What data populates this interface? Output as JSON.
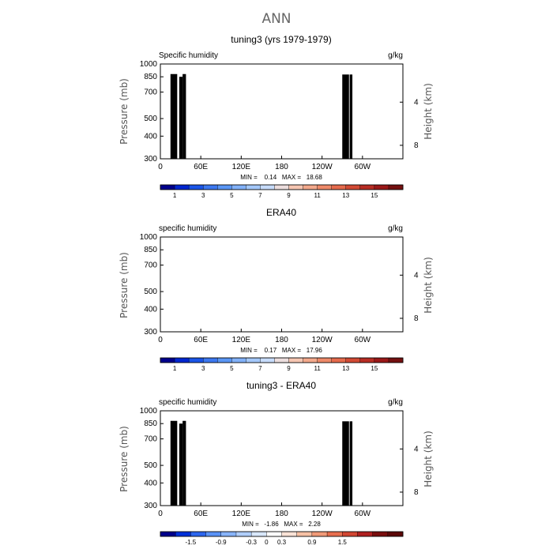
{
  "title": "ANN",
  "chart_data": [
    {
      "type": "heatmap",
      "panel_title": "tuning3 (yrs 1979-1979)",
      "left_label": "Specific humidity",
      "right_label": "g/kg",
      "ylabel": "Pressure (mb)",
      "y2label": "Height (km)",
      "x_ticks": [
        "0",
        "60E",
        "120E",
        "180",
        "120W",
        "60W"
      ],
      "x_tick_lons": [
        0,
        60,
        120,
        180,
        240,
        300
      ],
      "xlim": [
        0,
        360
      ],
      "y_ticks": [
        "300",
        "400",
        "500",
        "700",
        "850",
        "1000"
      ],
      "y_tick_values": [
        300,
        400,
        500,
        700,
        850,
        1000
      ],
      "ylim": [
        1000,
        300
      ],
      "y_scale": "log",
      "y2_ticks": [
        "8",
        "4"
      ],
      "y2_tick_values": [
        356,
        616
      ],
      "min_max_text": "MIN =    0.14   MAX =   18.68",
      "min": 0.14,
      "max": 18.68,
      "field": "humidity",
      "topography": true,
      "levels": [
        0,
        1,
        2,
        3,
        4,
        5,
        6,
        7,
        8,
        9,
        10,
        11,
        12,
        13,
        14,
        15,
        16
      ],
      "colorbar_labels": [
        "1",
        "3",
        "5",
        "7",
        "9",
        "11",
        "13",
        "15"
      ]
    },
    {
      "type": "heatmap",
      "panel_title": "ERA40",
      "left_label": "specific humidity",
      "right_label": "g/kg",
      "ylabel": "Pressure (mb)",
      "y2label": "Height (km)",
      "x_ticks": [
        "0",
        "60E",
        "120E",
        "180",
        "120W",
        "60W"
      ],
      "x_tick_lons": [
        0,
        60,
        120,
        180,
        240,
        300
      ],
      "xlim": [
        0,
        360
      ],
      "y_ticks": [
        "300",
        "400",
        "500",
        "700",
        "850",
        "1000"
      ],
      "y_tick_values": [
        300,
        400,
        500,
        700,
        850,
        1000
      ],
      "ylim": [
        1000,
        300
      ],
      "y_scale": "log",
      "y2_ticks": [
        "8",
        "4"
      ],
      "y2_tick_values": [
        356,
        616
      ],
      "min_max_text": "MIN =    0.17   MAX =   17.96",
      "min": 0.17,
      "max": 17.96,
      "field": "humidity",
      "topography": false,
      "levels": [
        0,
        1,
        2,
        3,
        4,
        5,
        6,
        7,
        8,
        9,
        10,
        11,
        12,
        13,
        14,
        15,
        16
      ],
      "colorbar_labels": [
        "1",
        "3",
        "5",
        "7",
        "9",
        "11",
        "13",
        "15"
      ]
    },
    {
      "type": "heatmap",
      "panel_title": "tuning3 - ERA40",
      "left_label": "specific humidity",
      "right_label": "g/kg",
      "ylabel": "Pressure (mb)",
      "y2label": "Height (km)",
      "x_ticks": [
        "0",
        "60E",
        "120E",
        "180",
        "120W",
        "60W"
      ],
      "x_tick_lons": [
        0,
        60,
        120,
        180,
        240,
        300
      ],
      "xlim": [
        0,
        360
      ],
      "y_ticks": [
        "300",
        "400",
        "500",
        "700",
        "850",
        "1000"
      ],
      "y_tick_values": [
        300,
        400,
        500,
        700,
        850,
        1000
      ],
      "ylim": [
        1000,
        300
      ],
      "y_scale": "log",
      "y2_ticks": [
        "8",
        "4"
      ],
      "y2_tick_values": [
        356,
        616
      ],
      "min_max_text": "MIN =   -1.86   MAX =   2.28",
      "min": -1.86,
      "max": 2.28,
      "field": "difference",
      "topography": true,
      "levels": [
        -1.8,
        -1.5,
        -1.2,
        -0.9,
        -0.6,
        -0.3,
        -0.1,
        0,
        0.1,
        0.3,
        0.6,
        0.9,
        1.2,
        1.5,
        1.8
      ],
      "colorbar_labels": [
        "-1.5",
        "-0.9",
        "-0.3",
        "0",
        "0.3",
        "0.9",
        "1.5"
      ]
    }
  ],
  "colors": {
    "scale16": [
      "#00008c",
      "#0026d0",
      "#1a55e8",
      "#3c78f0",
      "#5a96f5",
      "#82b1f8",
      "#a4c8fa",
      "#c7dcfb",
      "#ecdede",
      "#f6c6b2",
      "#f3a98c",
      "#ee8a69",
      "#e56a4c",
      "#d24a34",
      "#b82d24",
      "#9a1818",
      "#741010"
    ],
    "scale_diff": [
      "#00008c",
      "#0030d8",
      "#2c66ee",
      "#5a92f6",
      "#88b4fa",
      "#b0cefb",
      "#d8e7fc",
      "#ffffff",
      "#f9e2d6",
      "#f6c0a4",
      "#f09a78",
      "#e76e4e",
      "#d24632",
      "#b02020",
      "#7a0e0e",
      "#5c0808"
    ],
    "topography": "#000000"
  }
}
